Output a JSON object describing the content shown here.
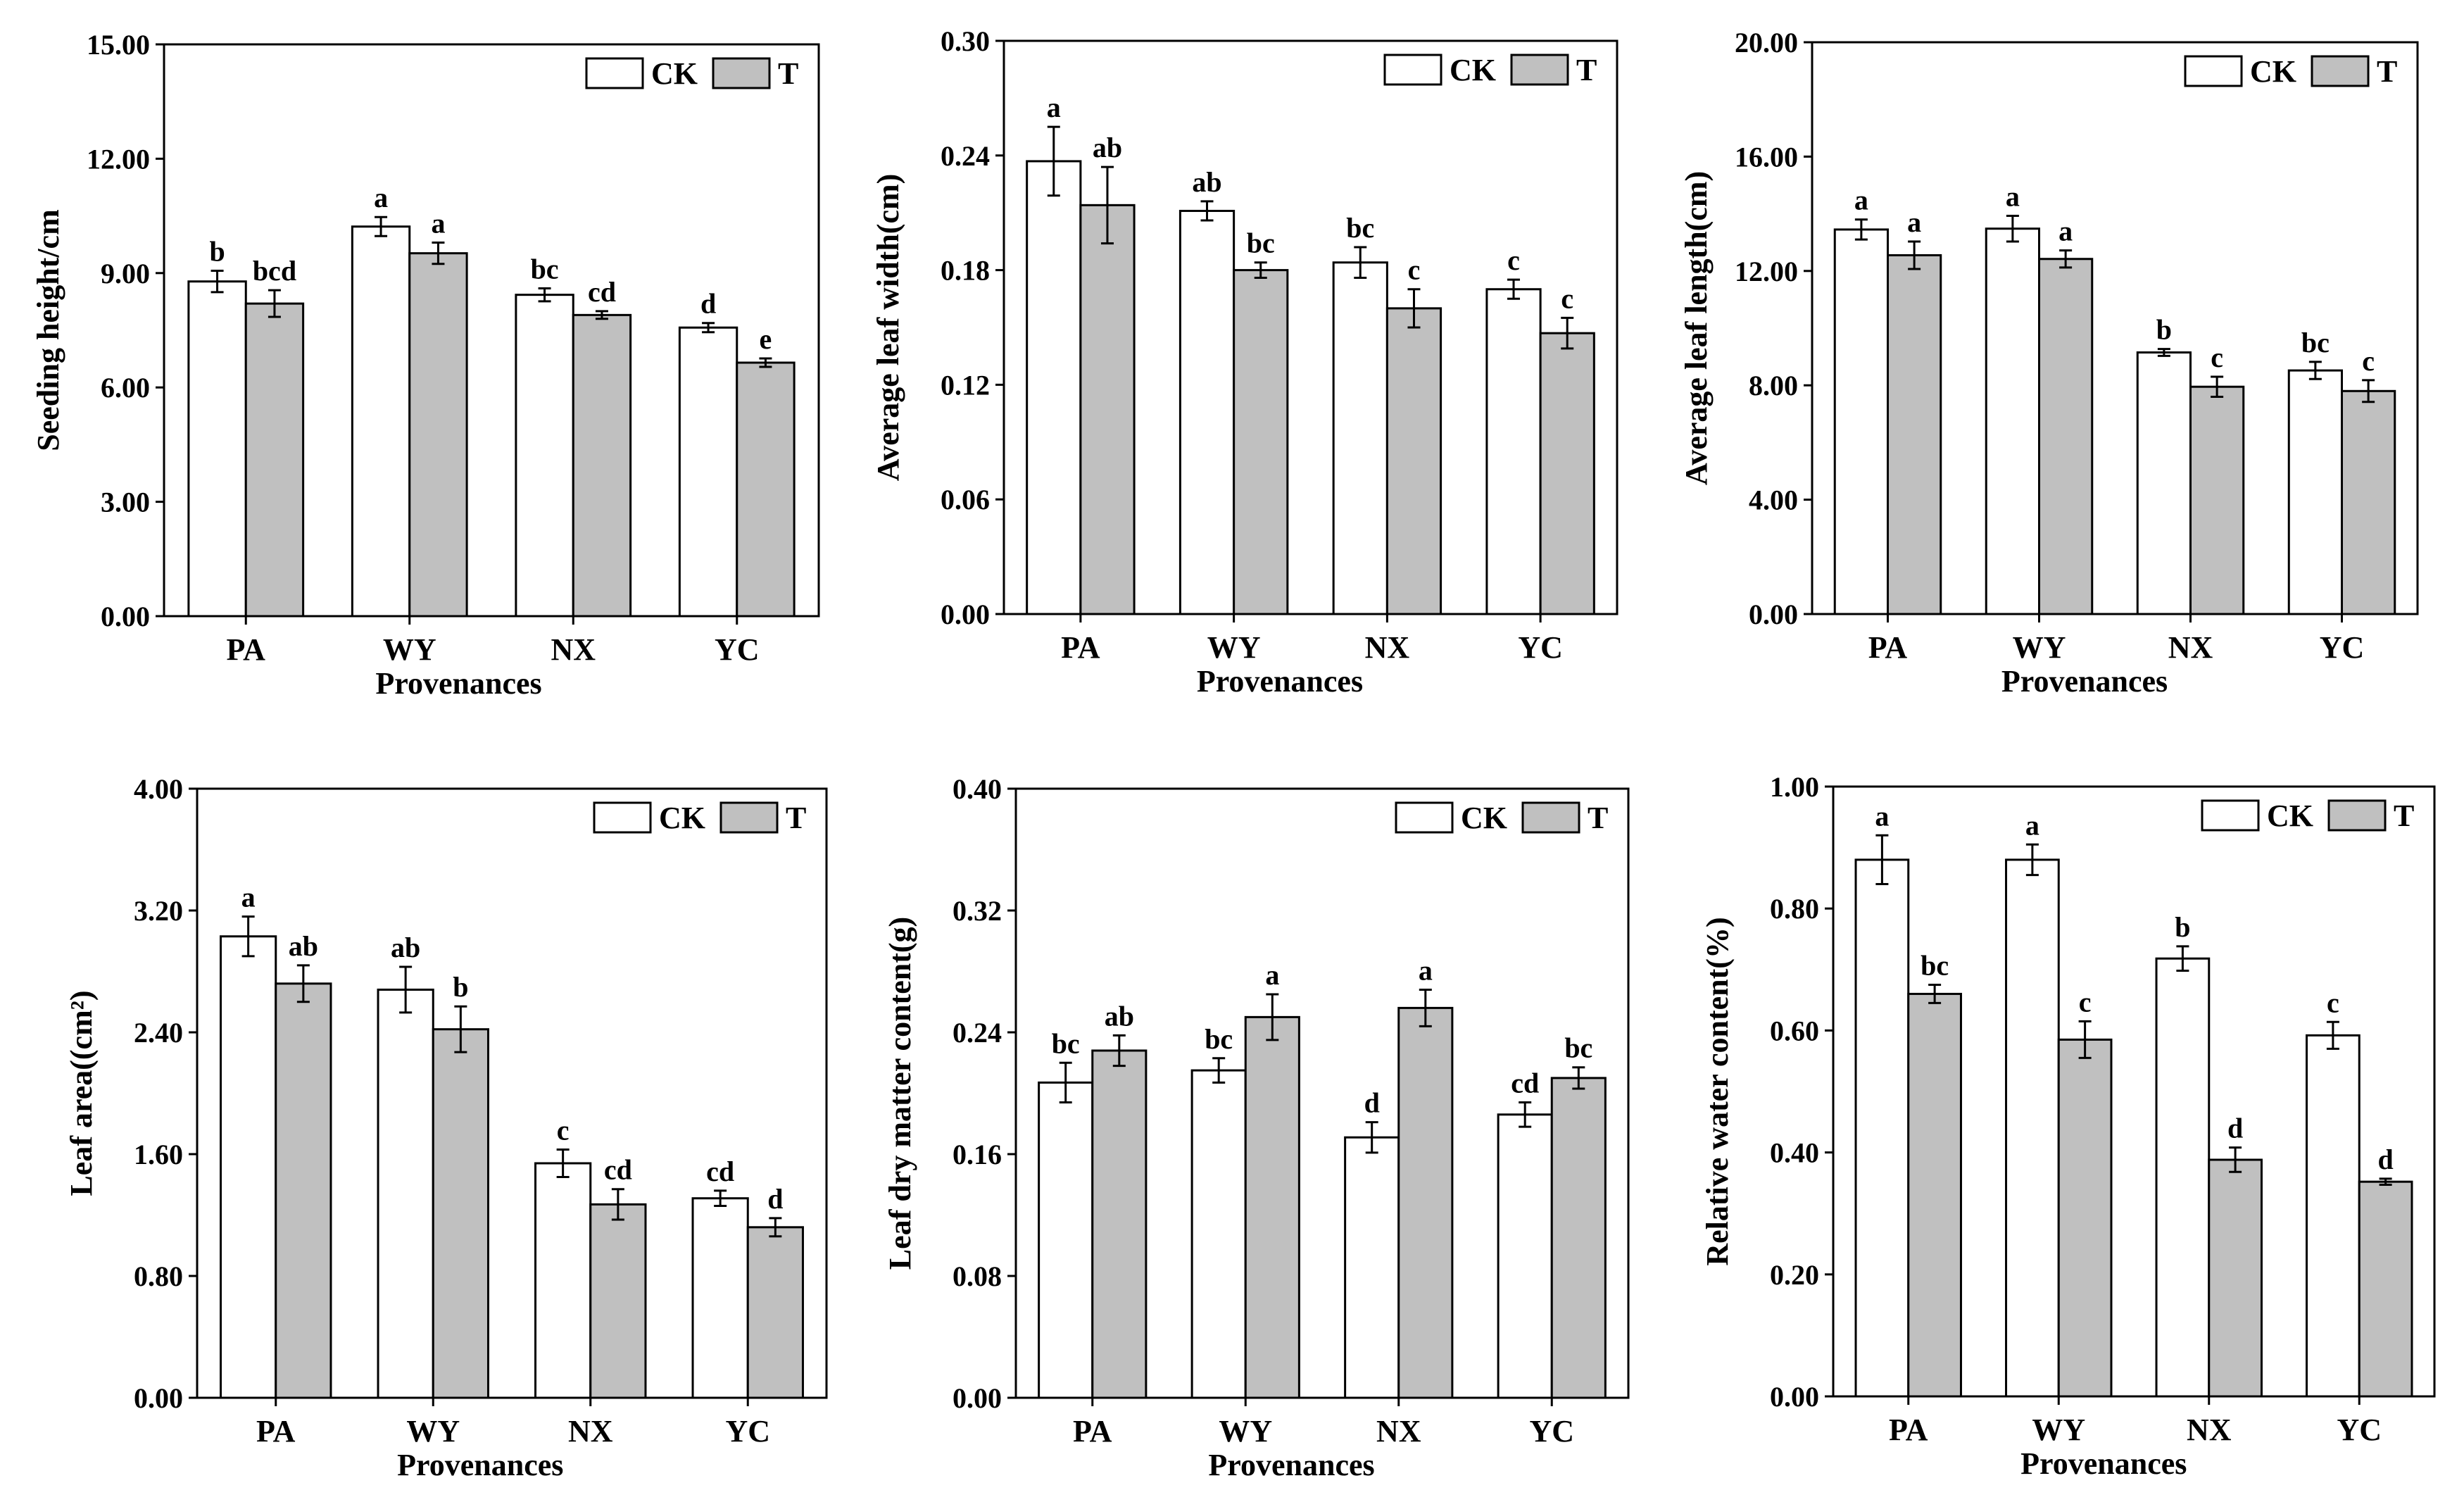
{
  "x_axis_label": "Provenances",
  "legend": [
    "CK",
    "T"
  ],
  "colors": {
    "CK": "#ffffff",
    "T": "#c0c0c0",
    "axis": "#000000"
  },
  "chart_data": [
    {
      "type": "bar",
      "categories": [
        "PA",
        "WY",
        "NX",
        "YC"
      ],
      "ylabel": "Seeding height/cm",
      "ylim": [
        0,
        15
      ],
      "yticks": [
        "0.00",
        "3.00",
        "6.00",
        "9.00",
        "12.00",
        "15.00"
      ],
      "series": [
        {
          "name": "CK",
          "values": [
            8.78,
            10.22,
            8.43,
            7.57
          ],
          "errors": [
            0.28,
            0.25,
            0.17,
            0.12
          ],
          "letters": [
            "b",
            "a",
            "bc",
            "d"
          ]
        },
        {
          "name": "T",
          "values": [
            8.2,
            9.52,
            7.9,
            6.65
          ],
          "errors": [
            0.35,
            0.28,
            0.1,
            0.11
          ],
          "letters": [
            "bcd",
            "a",
            "cd",
            "e"
          ]
        }
      ]
    },
    {
      "type": "bar",
      "categories": [
        "PA",
        "WY",
        "NX",
        "YC"
      ],
      "ylabel": "Average leaf width(cm)",
      "ylim": [
        0,
        0.3
      ],
      "yticks": [
        "0.00",
        "0.06",
        "0.12",
        "0.18",
        "0.24",
        "0.30"
      ],
      "series": [
        {
          "name": "CK",
          "values": [
            0.237,
            0.211,
            0.184,
            0.17
          ],
          "errors": [
            0.018,
            0.005,
            0.008,
            0.005
          ],
          "letters": [
            "a",
            "ab",
            "bc",
            "c"
          ]
        },
        {
          "name": "T",
          "values": [
            0.214,
            0.18,
            0.16,
            0.147
          ],
          "errors": [
            0.02,
            0.004,
            0.01,
            0.008
          ],
          "letters": [
            "ab",
            "bc",
            "c",
            "c"
          ]
        }
      ]
    },
    {
      "type": "bar",
      "categories": [
        "PA",
        "WY",
        "NX",
        "YC"
      ],
      "ylabel": "Average leaf length(cm)",
      "ylim": [
        0,
        20
      ],
      "yticks": [
        "0.00",
        "4.00",
        "8.00",
        "12.00",
        "16.00",
        "20.00"
      ],
      "series": [
        {
          "name": "CK",
          "values": [
            13.45,
            13.48,
            9.15,
            8.52
          ],
          "errors": [
            0.35,
            0.45,
            0.12,
            0.3
          ],
          "letters": [
            "a",
            "a",
            "b",
            "bc"
          ]
        },
        {
          "name": "T",
          "values": [
            12.55,
            12.42,
            7.95,
            7.8
          ],
          "errors": [
            0.48,
            0.3,
            0.35,
            0.38
          ],
          "letters": [
            "a",
            "a",
            "c",
            "c"
          ]
        }
      ]
    },
    {
      "type": "bar",
      "categories": [
        "PA",
        "WY",
        "NX",
        "YC"
      ],
      "ylabel": "Leaf area((cm²)",
      "ylim": [
        0,
        4
      ],
      "yticks": [
        "0.00",
        "0.80",
        "1.60",
        "2.40",
        "3.20",
        "4.00"
      ],
      "series": [
        {
          "name": "CK",
          "values": [
            3.03,
            2.68,
            1.54,
            1.31
          ],
          "errors": [
            0.13,
            0.15,
            0.09,
            0.05
          ],
          "letters": [
            "a",
            "ab",
            "c",
            "cd"
          ]
        },
        {
          "name": "T",
          "values": [
            2.72,
            2.42,
            1.27,
            1.12
          ],
          "errors": [
            0.12,
            0.15,
            0.1,
            0.06
          ],
          "letters": [
            "ab",
            "b",
            "cd",
            "d"
          ]
        }
      ]
    },
    {
      "type": "bar",
      "categories": [
        "PA",
        "WY",
        "NX",
        "YC"
      ],
      "ylabel": "Leaf dry matter content(g)",
      "ylim": [
        0,
        0.4
      ],
      "yticks": [
        "0.00",
        "0.08",
        "0.16",
        "0.24",
        "0.32",
        "0.40"
      ],
      "series": [
        {
          "name": "CK",
          "values": [
            0.207,
            0.215,
            0.171,
            0.186
          ],
          "errors": [
            0.013,
            0.008,
            0.01,
            0.008
          ],
          "letters": [
            "bc",
            "bc",
            "d",
            "cd"
          ]
        },
        {
          "name": "T",
          "values": [
            0.228,
            0.25,
            0.256,
            0.21
          ],
          "errors": [
            0.01,
            0.015,
            0.012,
            0.007
          ],
          "letters": [
            "ab",
            "a",
            "a",
            "bc"
          ]
        }
      ]
    },
    {
      "type": "bar",
      "categories": [
        "PA",
        "WY",
        "NX",
        "YC"
      ],
      "ylabel": "Relative water content(%)",
      "ylim": [
        0,
        1
      ],
      "yticks": [
        "0.00",
        "0.20",
        "0.40",
        "0.60",
        "0.80",
        "1.00"
      ],
      "series": [
        {
          "name": "CK",
          "values": [
            0.88,
            0.88,
            0.718,
            0.592
          ],
          "errors": [
            0.04,
            0.025,
            0.02,
            0.022
          ],
          "letters": [
            "a",
            "a",
            "b",
            "c"
          ]
        },
        {
          "name": "T",
          "values": [
            0.66,
            0.585,
            0.388,
            0.352
          ],
          "errors": [
            0.015,
            0.03,
            0.02,
            0.005
          ],
          "letters": [
            "bc",
            "c",
            "d",
            "d"
          ]
        }
      ]
    }
  ]
}
